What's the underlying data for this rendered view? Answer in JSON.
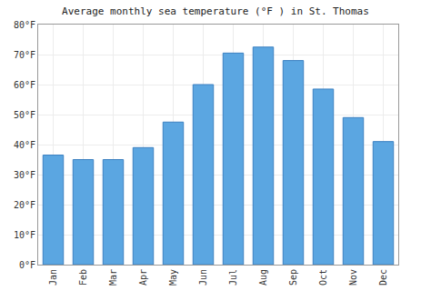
{
  "chart_data": {
    "type": "bar",
    "title": "Average monthly sea temperature (°F ) in St. Thomas",
    "categories": [
      "Jan",
      "Feb",
      "Mar",
      "Apr",
      "May",
      "Jun",
      "Jul",
      "Aug",
      "Sep",
      "Oct",
      "Nov",
      "Dec"
    ],
    "values": [
      36.5,
      35,
      35,
      39,
      47.5,
      60,
      70.5,
      72.5,
      68,
      58.5,
      49,
      41
    ],
    "color": "#5ba6e1",
    "ylim": [
      0,
      80
    ],
    "yticks": [
      {
        "value": 0,
        "label": "0°F"
      },
      {
        "value": 10,
        "label": "10°F"
      },
      {
        "value": 20,
        "label": "20°F"
      },
      {
        "value": 30,
        "label": "30°F"
      },
      {
        "value": 40,
        "label": "40°F"
      },
      {
        "value": 50,
        "label": "50°F"
      },
      {
        "value": 60,
        "label": "60°F"
      },
      {
        "value": 70,
        "label": "70°F"
      },
      {
        "value": 80,
        "label": "80°F"
      }
    ],
    "grid": true
  }
}
